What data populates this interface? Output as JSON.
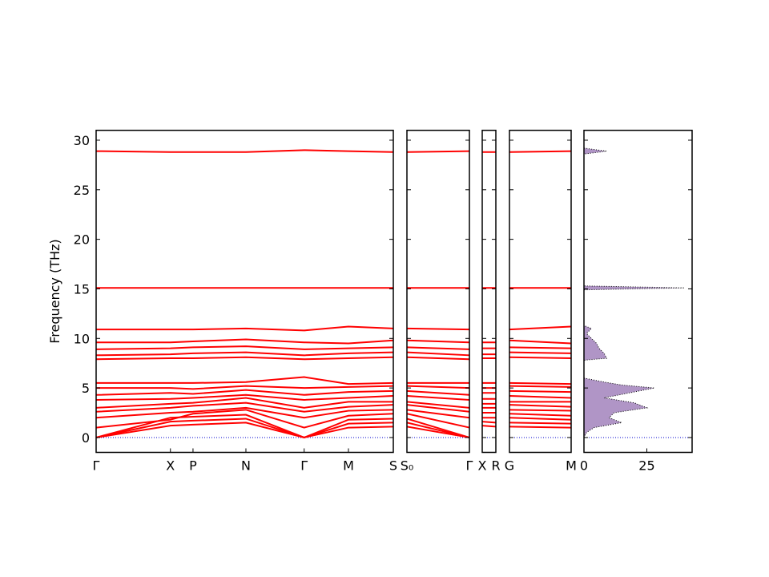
{
  "chart_data": [
    {
      "type": "line",
      "ylabel": "Frequency (THz)",
      "color": "#ff0000",
      "zero_line_color": "#0000cc",
      "show_ytick_labels": true,
      "xlim": [
        0,
        1
      ],
      "ylim": [
        -1.5,
        31
      ],
      "yticks": [
        0,
        5,
        10,
        15,
        20,
        25,
        30
      ],
      "x": [
        0,
        0.25,
        0.326,
        0.504,
        0.7,
        0.849,
        1
      ],
      "xticks": [
        {
          "value": 0,
          "label": "Γ"
        },
        {
          "value": 0.25,
          "label": "X"
        },
        {
          "value": 0.326,
          "label": "P"
        },
        {
          "value": 0.504,
          "label": "N"
        },
        {
          "value": 0.7,
          "label": "Γ"
        },
        {
          "value": 0.849,
          "label": "M"
        },
        {
          "value": 1,
          "label": "S"
        }
      ],
      "series": [
        {
          "values": [
            0,
            1.2,
            1.3,
            1.5,
            0,
            1.0,
            1.1
          ]
        },
        {
          "values": [
            0,
            1.6,
            1.7,
            1.9,
            0,
            1.4,
            1.5
          ]
        },
        {
          "values": [
            0,
            2.0,
            2.1,
            2.3,
            0,
            1.8,
            1.9
          ]
        },
        {
          "values": [
            1.0,
            1.8,
            2.4,
            2.8,
            1.0,
            2.2,
            2.4
          ]
        },
        {
          "values": [
            2.0,
            2.5,
            2.6,
            3.0,
            2.0,
            2.7,
            2.8
          ]
        },
        {
          "values": [
            2.6,
            3.0,
            3.2,
            3.5,
            2.6,
            3.1,
            3.3
          ]
        },
        {
          "values": [
            3.0,
            3.4,
            3.5,
            4.0,
            3.0,
            3.6,
            3.6
          ]
        },
        {
          "values": [
            3.8,
            3.9,
            4.0,
            4.3,
            3.8,
            4.0,
            4.2
          ]
        },
        {
          "values": [
            4.3,
            4.5,
            4.4,
            4.8,
            4.3,
            4.6,
            4.7
          ]
        },
        {
          "values": [
            5.0,
            5.0,
            4.9,
            5.2,
            5.0,
            5.1,
            5.2
          ]
        },
        {
          "values": [
            5.5,
            5.5,
            5.5,
            5.6,
            6.1,
            5.4,
            5.5
          ]
        },
        {
          "values": [
            7.9,
            8.0,
            8.0,
            8.1,
            7.9,
            8.0,
            8.1
          ]
        },
        {
          "values": [
            8.3,
            8.4,
            8.5,
            8.6,
            8.3,
            8.5,
            8.6
          ]
        },
        {
          "values": [
            8.9,
            9.0,
            9.1,
            9.2,
            8.9,
            9.0,
            9.1
          ]
        },
        {
          "values": [
            9.6,
            9.6,
            9.7,
            9.9,
            9.6,
            9.5,
            9.8
          ]
        },
        {
          "values": [
            10.9,
            10.9,
            10.9,
            11.0,
            10.8,
            11.2,
            11.0
          ]
        },
        {
          "values": [
            15.1,
            15.1,
            15.1,
            15.1,
            15.1,
            15.1,
            15.1
          ]
        },
        {
          "values": [
            28.9,
            28.8,
            28.8,
            28.8,
            29.0,
            28.9,
            28.8
          ]
        }
      ]
    },
    {
      "type": "line",
      "color": "#ff0000",
      "zero_line_color": "#0000cc",
      "show_ytick_labels": false,
      "xlim": [
        0,
        1
      ],
      "ylim": [
        -1.5,
        31
      ],
      "yticks": [
        0,
        5,
        10,
        15,
        20,
        25,
        30
      ],
      "x": [
        0,
        1
      ],
      "xticks": [
        {
          "value": 0,
          "label": "S₀"
        },
        {
          "value": 1,
          "label": "Γ"
        }
      ],
      "series": [
        {
          "values": [
            1.1,
            0
          ]
        },
        {
          "values": [
            1.5,
            0
          ]
        },
        {
          "values": [
            1.9,
            0
          ]
        },
        {
          "values": [
            2.4,
            1.0
          ]
        },
        {
          "values": [
            2.8,
            2.0
          ]
        },
        {
          "values": [
            3.3,
            2.6
          ]
        },
        {
          "values": [
            3.6,
            3.0
          ]
        },
        {
          "values": [
            4.2,
            3.8
          ]
        },
        {
          "values": [
            4.7,
            4.3
          ]
        },
        {
          "values": [
            5.2,
            5.0
          ]
        },
        {
          "values": [
            5.5,
            5.5
          ]
        },
        {
          "values": [
            8.1,
            7.9
          ]
        },
        {
          "values": [
            8.6,
            8.3
          ]
        },
        {
          "values": [
            9.1,
            8.9
          ]
        },
        {
          "values": [
            9.8,
            9.6
          ]
        },
        {
          "values": [
            11.0,
            10.9
          ]
        },
        {
          "values": [
            15.1,
            15.1
          ]
        },
        {
          "values": [
            28.8,
            28.9
          ]
        }
      ]
    },
    {
      "type": "line",
      "color": "#ff0000",
      "zero_line_color": "#0000cc",
      "show_ytick_labels": false,
      "xlim": [
        0,
        1
      ],
      "ylim": [
        -1.5,
        31
      ],
      "yticks": [
        0,
        5,
        10,
        15,
        20,
        25,
        30
      ],
      "x": [
        0,
        1
      ],
      "xticks": [
        {
          "value": 0,
          "label": "X"
        },
        {
          "value": 1,
          "label": "R"
        }
      ],
      "series": [
        {
          "values": [
            1.2,
            1.1
          ]
        },
        {
          "values": [
            1.6,
            1.5
          ]
        },
        {
          "values": [
            2.0,
            2.0
          ]
        },
        {
          "values": [
            2.5,
            2.5
          ]
        },
        {
          "values": [
            3.0,
            3.0
          ]
        },
        {
          "values": [
            3.4,
            3.4
          ]
        },
        {
          "values": [
            3.9,
            3.9
          ]
        },
        {
          "values": [
            4.5,
            4.5
          ]
        },
        {
          "values": [
            5.0,
            5.0
          ]
        },
        {
          "values": [
            5.5,
            5.5
          ]
        },
        {
          "values": [
            8.0,
            8.0
          ]
        },
        {
          "values": [
            8.4,
            8.4
          ]
        },
        {
          "values": [
            9.0,
            9.0
          ]
        },
        {
          "values": [
            9.6,
            9.6
          ]
        },
        {
          "values": [
            15.1,
            15.1
          ]
        },
        {
          "values": [
            28.8,
            28.8
          ]
        }
      ]
    },
    {
      "type": "line",
      "color": "#ff0000",
      "zero_line_color": "#0000cc",
      "show_ytick_labels": false,
      "xlim": [
        0,
        1
      ],
      "ylim": [
        -1.5,
        31
      ],
      "yticks": [
        0,
        5,
        10,
        15,
        20,
        25,
        30
      ],
      "x": [
        0,
        1
      ],
      "xticks": [
        {
          "value": 0,
          "label": "G"
        },
        {
          "value": 1,
          "label": "M"
        }
      ],
      "series": [
        {
          "values": [
            1.1,
            1.0
          ]
        },
        {
          "values": [
            1.5,
            1.4
          ]
        },
        {
          "values": [
            2.0,
            1.8
          ]
        },
        {
          "values": [
            2.4,
            2.2
          ]
        },
        {
          "values": [
            2.8,
            2.7
          ]
        },
        {
          "values": [
            3.3,
            3.1
          ]
        },
        {
          "values": [
            3.6,
            3.6
          ]
        },
        {
          "values": [
            4.2,
            4.0
          ]
        },
        {
          "values": [
            4.7,
            4.6
          ]
        },
        {
          "values": [
            5.2,
            5.1
          ]
        },
        {
          "values": [
            5.5,
            5.4
          ]
        },
        {
          "values": [
            8.1,
            8.0
          ]
        },
        {
          "values": [
            8.6,
            8.5
          ]
        },
        {
          "values": [
            9.1,
            9.0
          ]
        },
        {
          "values": [
            9.8,
            9.5
          ]
        },
        {
          "values": [
            10.9,
            11.2
          ]
        },
        {
          "values": [
            15.1,
            15.1
          ]
        },
        {
          "values": [
            28.8,
            28.9
          ]
        }
      ]
    },
    {
      "type": "area",
      "color": "#7b4fa0",
      "zero_line_color": "#0000cc",
      "show_ytick_labels": false,
      "xlim": [
        0,
        43
      ],
      "xticks": [
        0,
        25
      ],
      "ylim": [
        -1.5,
        31
      ],
      "yticks": [
        0,
        5,
        10,
        15,
        20,
        25,
        30
      ],
      "frequency": [
        0,
        0.5,
        1,
        1.5,
        2,
        2.5,
        3,
        3.5,
        4,
        4.5,
        5,
        5.3,
        5.6,
        6,
        7.8,
        8,
        8.5,
        9,
        9.5,
        10,
        10.5,
        11,
        11.3,
        14.9,
        15.1,
        15.3,
        28.6,
        28.9,
        29.2
      ],
      "values": [
        0,
        1,
        4,
        15,
        10,
        12,
        25,
        20,
        8,
        18,
        28,
        15,
        8,
        0,
        0,
        9,
        8,
        6,
        5,
        3,
        1,
        3,
        0,
        0,
        40,
        0,
        0,
        9,
        0
      ]
    }
  ]
}
